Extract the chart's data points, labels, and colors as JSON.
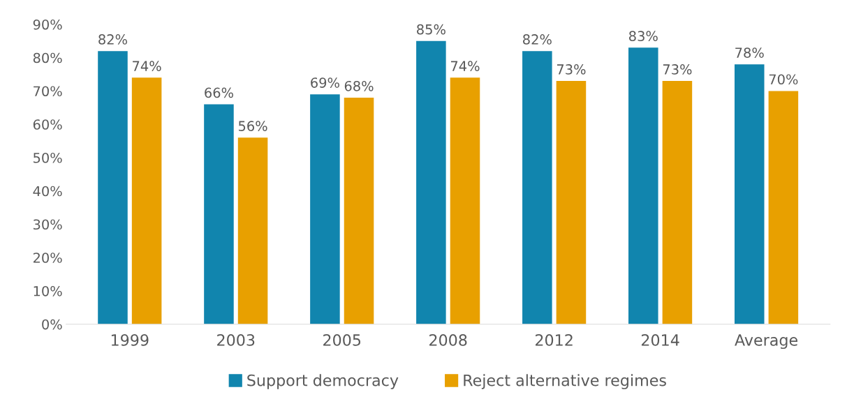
{
  "chart_data": {
    "type": "bar",
    "categories": [
      "1999",
      "2003",
      "2005",
      "2008",
      "2012",
      "2014",
      "Average"
    ],
    "series": [
      {
        "name": "Support democracy",
        "color": "#1185ae",
        "values": [
          82,
          66,
          69,
          85,
          82,
          83,
          78
        ],
        "value_labels": [
          "82%",
          "66%",
          "69%",
          "85%",
          "82%",
          "83%",
          "78%"
        ]
      },
      {
        "name": "Reject alternative regimes",
        "color": "#e8a000",
        "values": [
          74,
          56,
          68,
          74,
          73,
          73,
          70
        ],
        "value_labels": [
          "74%",
          "56%",
          "68%",
          "74%",
          "73%",
          "73%",
          "70%"
        ]
      }
    ],
    "ylim": [
      0,
      90
    ],
    "yticks": [
      {
        "value": 0,
        "label": "0%"
      },
      {
        "value": 10,
        "label": "10%"
      },
      {
        "value": 20,
        "label": "20%"
      },
      {
        "value": 30,
        "label": "30%"
      },
      {
        "value": 40,
        "label": "40%"
      },
      {
        "value": 50,
        "label": "50%"
      },
      {
        "value": 60,
        "label": "60%"
      },
      {
        "value": 70,
        "label": "70%"
      },
      {
        "value": 80,
        "label": "80%"
      },
      {
        "value": 90,
        "label": "90%"
      }
    ],
    "legend": "bottom",
    "grid": false
  }
}
